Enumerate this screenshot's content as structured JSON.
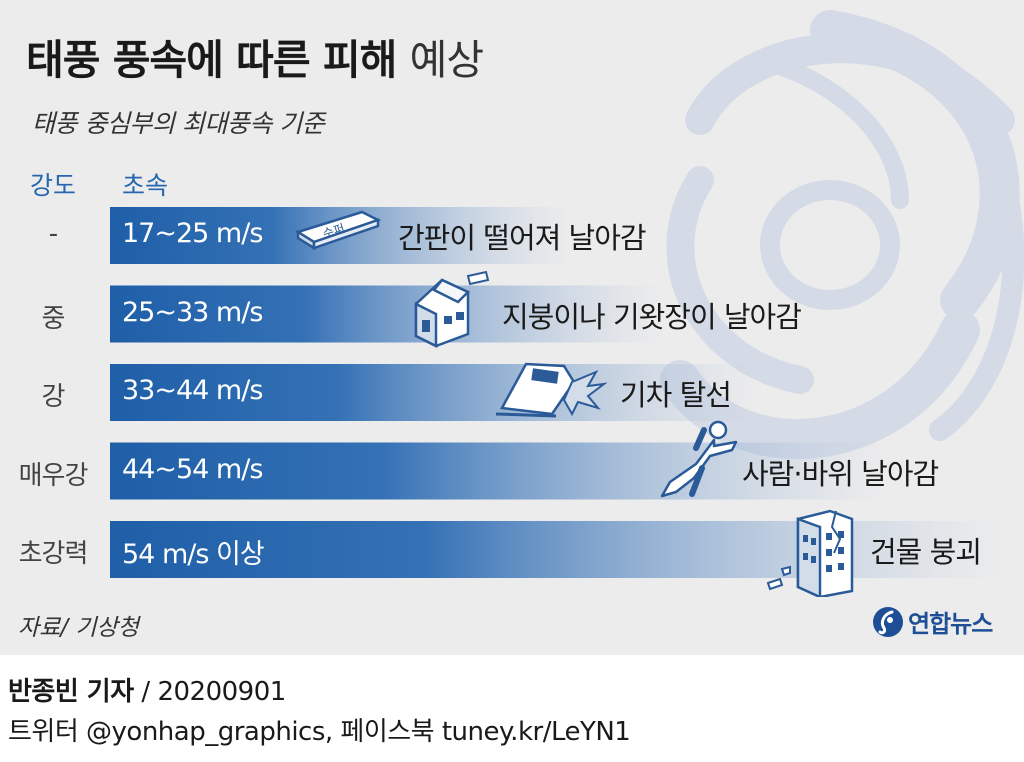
{
  "title": {
    "main": "태풍 풍속에 따른 피해",
    "light": "예상"
  },
  "subtitle": "태풍 중심부의 최대풍속 기준",
  "column_headers": {
    "grade": "강도",
    "speed": "초속"
  },
  "source": "자료/ 기상청",
  "logo_text": "연합뉴스",
  "credit": {
    "reporter": "반종빈 기자",
    "separator": "/",
    "date": "20200901"
  },
  "social": "트위터 @yonhap_graphics, 페이스북 tuney.kr/LeYN1",
  "icons": [
    "signboard-icon",
    "house-icon",
    "train-icon",
    "person-icon",
    "building-icon",
    "typhoon-icon",
    "yonhap-logo-icon"
  ],
  "colors": {
    "bar": "#1f5fa8",
    "header": "#2566ae",
    "background": "#ececec"
  },
  "chart_data": {
    "type": "bar",
    "orientation": "horizontal",
    "title": "태풍 풍속에 따른 피해 예상",
    "subtitle": "태풍 중심부의 최대풍속 기준",
    "categories": [
      "-",
      "중",
      "강",
      "매우강",
      "초강력"
    ],
    "speed_ranges": [
      "17~25 m/s",
      "25~33 m/s",
      "33~44 m/s",
      "44~54 m/s",
      "54 m/s 이상"
    ],
    "min_speed": [
      17,
      25,
      33,
      44,
      54
    ],
    "effects": [
      "간판이 떨어져 날아감",
      "지붕이나 기왓장이 날아감",
      "기차 탈선",
      "사람·바위 날아감",
      "건물 붕괴"
    ],
    "unit": "m/s"
  }
}
